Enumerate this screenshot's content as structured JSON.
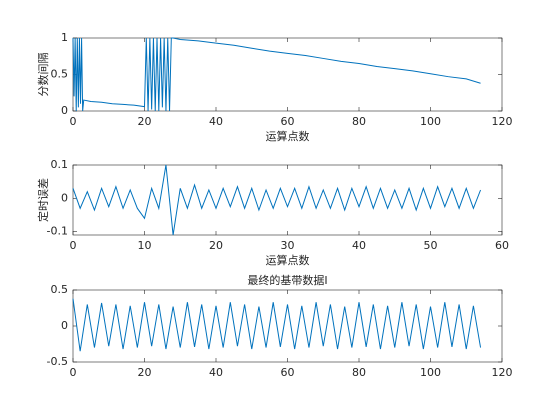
{
  "chart_data": [
    {
      "type": "line",
      "ylabel": "分数间隔",
      "xlabel": "运算点数",
      "xlim": [
        0,
        120
      ],
      "ylim": [
        0,
        1
      ],
      "xticks": [
        0,
        20,
        40,
        60,
        80,
        100,
        120
      ],
      "yticks": [
        0,
        0.5,
        1
      ],
      "series": [
        {
          "color": "#0072bd",
          "x": [
            0,
            0.3,
            0.6,
            0.9,
            1.2,
            1.5,
            1.8,
            2.1,
            2.4,
            2.7,
            3,
            5,
            8,
            11,
            14,
            17,
            20,
            20.5,
            21,
            21.5,
            22,
            22.5,
            23,
            23.5,
            24,
            24.5,
            25,
            25.5,
            26,
            26.5,
            27,
            27.5,
            28,
            30,
            35,
            40,
            45,
            50,
            55,
            60,
            65,
            70,
            75,
            80,
            85,
            90,
            95,
            100,
            105,
            110,
            114
          ],
          "values": [
            1,
            0.2,
            1,
            0,
            1,
            0.05,
            1,
            0.1,
            1,
            0,
            0.15,
            0.13,
            0.12,
            0.1,
            0.09,
            0.08,
            0.06,
            1,
            0,
            1,
            0.02,
            1,
            0,
            1,
            0,
            1,
            0.05,
            1,
            0,
            1,
            0,
            1,
            1,
            0.98,
            0.96,
            0.93,
            0.9,
            0.86,
            0.82,
            0.79,
            0.76,
            0.72,
            0.68,
            0.65,
            0.61,
            0.58,
            0.55,
            0.51,
            0.47,
            0.44,
            0.38
          ]
        }
      ]
    },
    {
      "type": "line",
      "ylabel": "定时误差",
      "xlabel": "运算点数",
      "xlim": [
        0,
        60
      ],
      "ylim": [
        -0.11,
        0.1
      ],
      "xticks": [
        0,
        10,
        20,
        30,
        40,
        50,
        60
      ],
      "yticks": [
        -0.1,
        0,
        0.1
      ],
      "series": [
        {
          "color": "#0072bd",
          "x": [
            0,
            1,
            2,
            3,
            4,
            5,
            6,
            7,
            8,
            9,
            10,
            11,
            12,
            13,
            14,
            15,
            16,
            17,
            18,
            19,
            20,
            21,
            22,
            23,
            24,
            25,
            26,
            27,
            28,
            29,
            30,
            31,
            32,
            33,
            34,
            35,
            36,
            37,
            38,
            39,
            40,
            41,
            42,
            43,
            44,
            45,
            46,
            47,
            48,
            49,
            50,
            51,
            52,
            53,
            54,
            55,
            56,
            57
          ],
          "values": [
            0.03,
            -0.03,
            0.02,
            -0.035,
            0.03,
            -0.025,
            0.035,
            -0.03,
            0.025,
            -0.03,
            -0.06,
            0.03,
            -0.03,
            0.1,
            -0.11,
            0.03,
            -0.03,
            0.04,
            -0.03,
            0.025,
            -0.03,
            0.03,
            -0.025,
            0.035,
            -0.03,
            0.03,
            -0.035,
            0.025,
            -0.03,
            0.03,
            -0.025,
            0.03,
            -0.03,
            0.035,
            -0.03,
            0.025,
            -0.03,
            0.03,
            -0.035,
            0.03,
            -0.025,
            0.035,
            -0.03,
            0.03,
            -0.03,
            0.025,
            -0.03,
            0.03,
            -0.035,
            0.03,
            -0.03,
            0.035,
            -0.025,
            0.03,
            -0.03,
            0.03,
            -0.03,
            0.025
          ]
        }
      ]
    },
    {
      "type": "line",
      "title": "最终的基带数据I",
      "xlim": [
        0,
        120
      ],
      "ylim": [
        -0.5,
        0.5
      ],
      "xticks": [
        0,
        20,
        40,
        60,
        80,
        100,
        120
      ],
      "yticks": [
        -0.5,
        0,
        0.5
      ],
      "series": [
        {
          "color": "#0072bd",
          "x": [
            0,
            2,
            4,
            6,
            8,
            10,
            12,
            14,
            16,
            18,
            20,
            22,
            24,
            26,
            28,
            30,
            32,
            34,
            36,
            38,
            40,
            42,
            44,
            46,
            48,
            50,
            52,
            54,
            56,
            58,
            60,
            62,
            64,
            66,
            68,
            70,
            72,
            74,
            76,
            78,
            80,
            82,
            84,
            86,
            88,
            90,
            92,
            94,
            96,
            98,
            100,
            102,
            104,
            106,
            108,
            110,
            112,
            114
          ],
          "values": [
            0.38,
            -0.35,
            0.3,
            -0.3,
            0.32,
            -0.28,
            0.3,
            -0.32,
            0.28,
            -0.3,
            0.33,
            -0.28,
            0.3,
            -0.32,
            0.27,
            -0.3,
            0.33,
            -0.29,
            0.3,
            -0.32,
            0.28,
            -0.3,
            0.33,
            -0.28,
            0.3,
            -0.32,
            0.27,
            -0.3,
            0.33,
            -0.29,
            0.3,
            -0.32,
            0.28,
            -0.3,
            0.33,
            -0.28,
            0.3,
            -0.32,
            0.27,
            -0.3,
            0.33,
            -0.29,
            0.3,
            -0.32,
            0.28,
            -0.3,
            0.33,
            -0.28,
            0.3,
            -0.32,
            0.27,
            -0.3,
            0.33,
            -0.29,
            0.3,
            -0.32,
            0.28,
            -0.3
          ]
        }
      ]
    }
  ]
}
